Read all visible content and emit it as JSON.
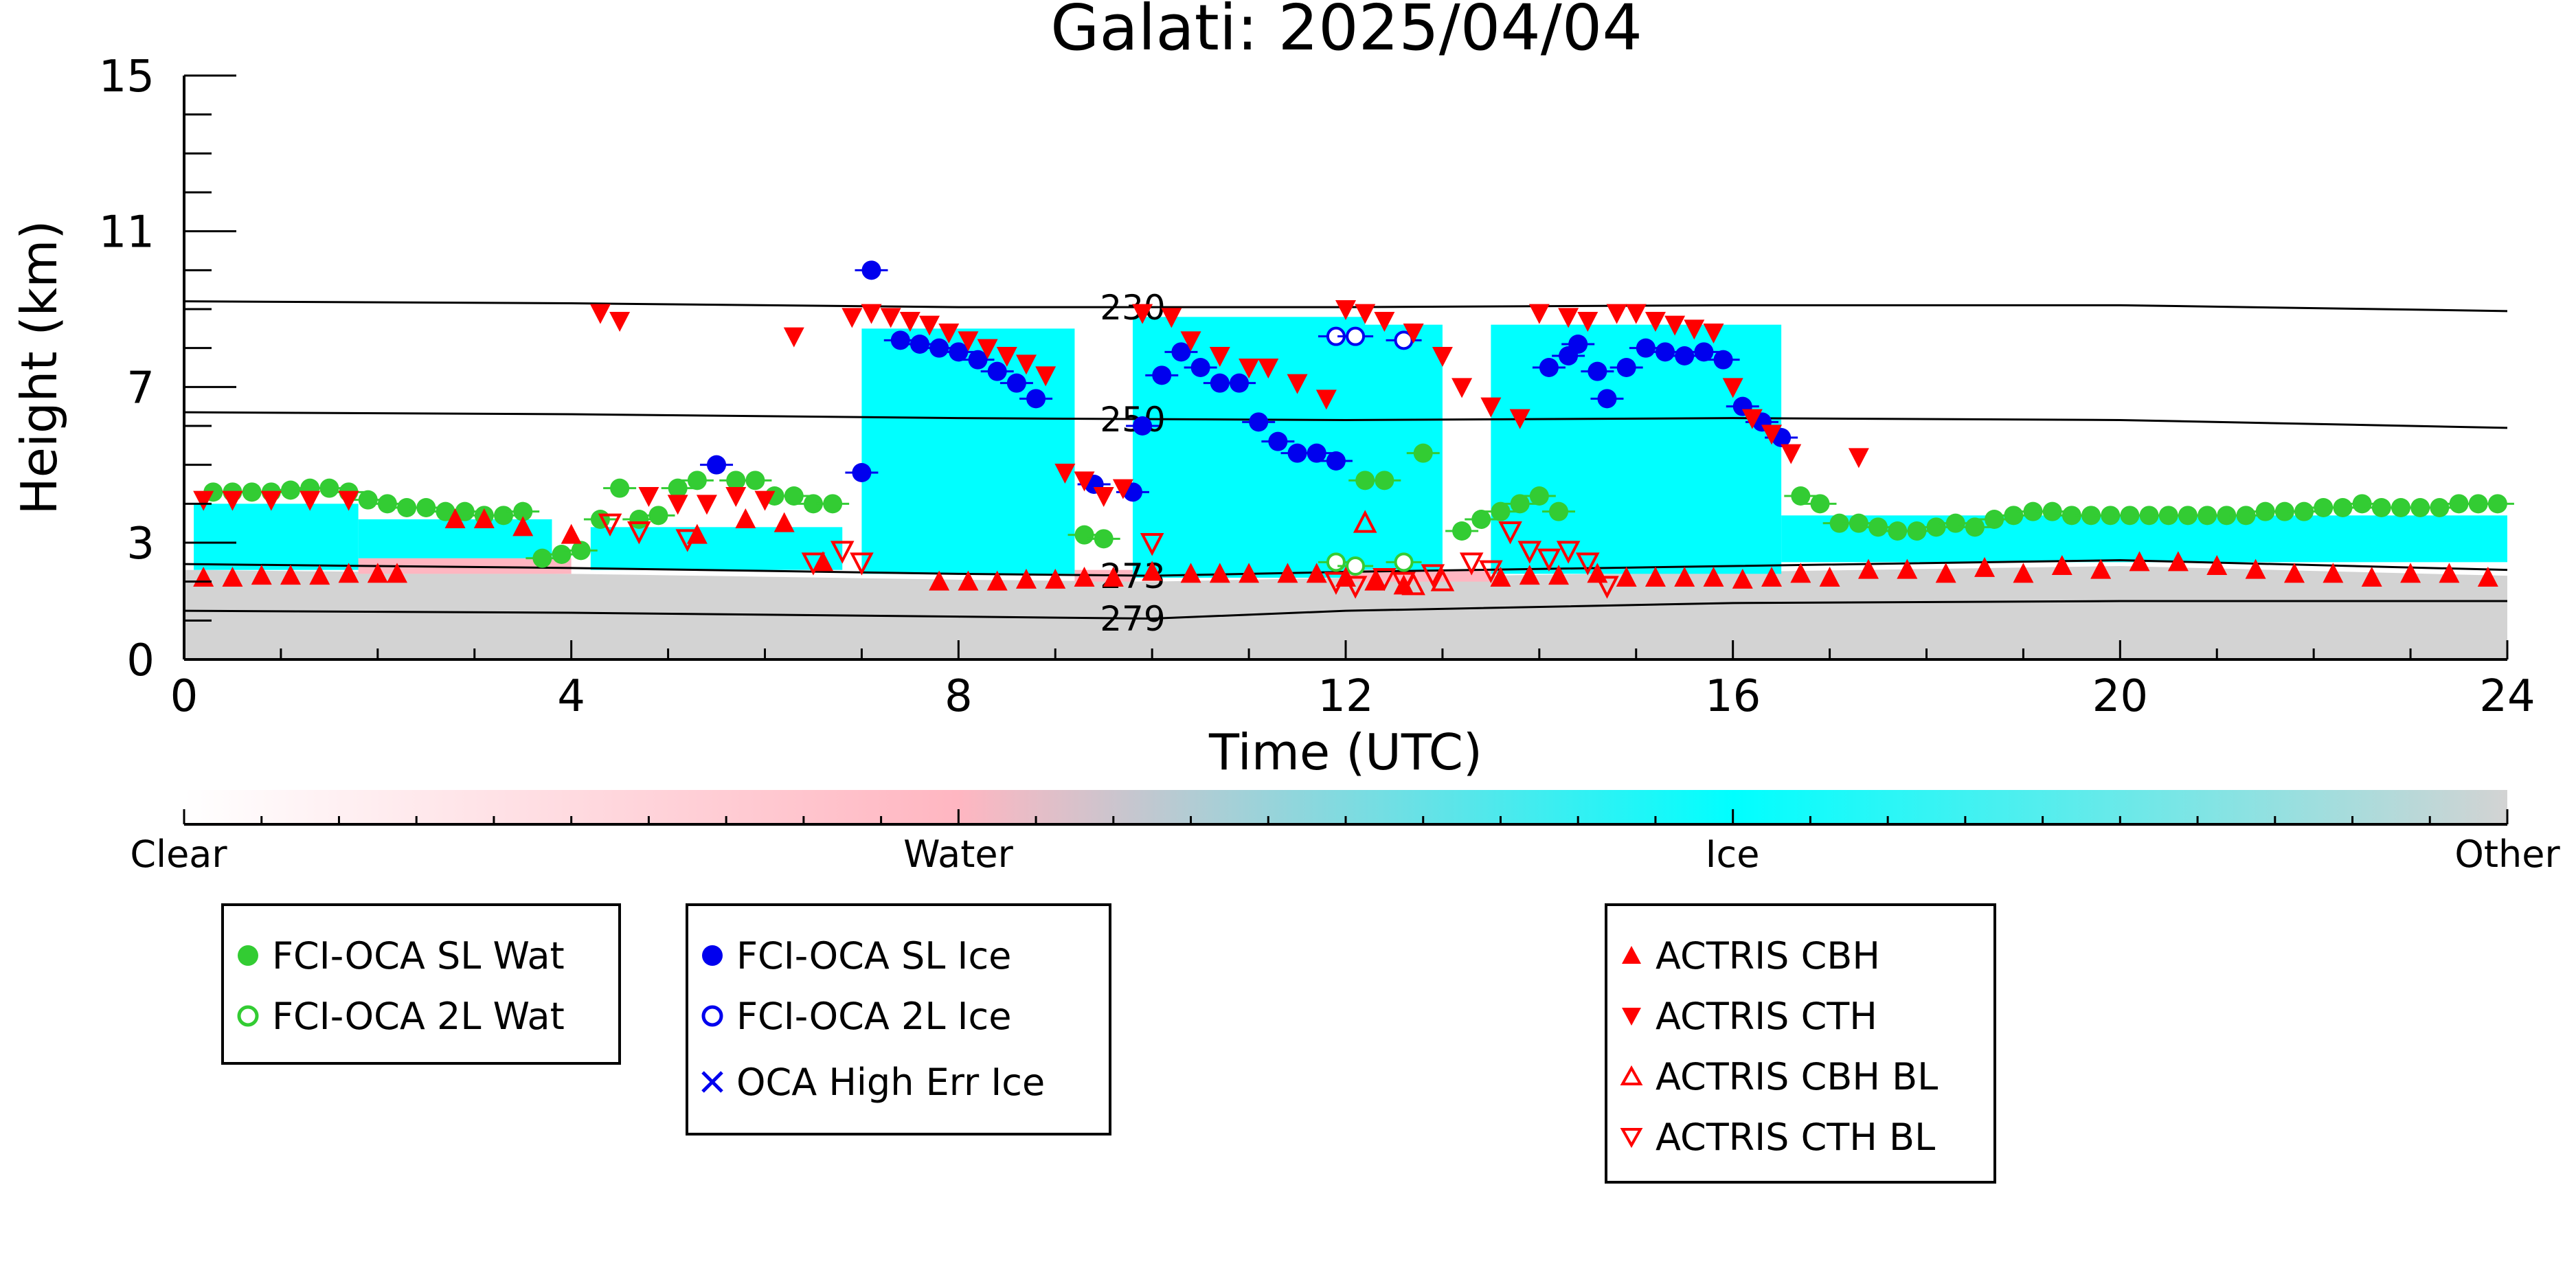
{
  "chart_data": {
    "type": "scatter",
    "title": "Galati: 2025/04/04",
    "xlabel": "Time (UTC)",
    "ylabel": "Height (km)",
    "xlim": [
      0,
      24
    ],
    "ylim": [
      0,
      15
    ],
    "xticks": [
      0,
      4,
      8,
      12,
      16,
      20,
      24
    ],
    "yticks": [
      0,
      3,
      7,
      11,
      15
    ],
    "grid": false,
    "background_classes": {
      "colorbar_labels": [
        "Clear",
        "Water",
        "Ice",
        "Other"
      ],
      "colors": {
        "clear": "#ffffff",
        "water": "#ffb6c1",
        "ice": "#00ffff",
        "other": "#d3d3d3"
      }
    },
    "isotherms": [
      {
        "label": "230",
        "x": [
          0,
          4,
          8,
          12,
          16,
          20,
          24
        ],
        "y": [
          9.2,
          9.15,
          9.05,
          9.05,
          9.1,
          9.1,
          8.95
        ]
      },
      {
        "label": "250",
        "x": [
          0,
          4,
          8,
          12,
          16,
          20,
          24
        ],
        "y": [
          6.35,
          6.3,
          6.2,
          6.15,
          6.2,
          6.15,
          5.95
        ]
      },
      {
        "label": "273",
        "x": [
          0,
          4,
          8,
          10,
          12,
          16,
          20,
          24
        ],
        "y": [
          2.45,
          2.35,
          2.2,
          2.15,
          2.25,
          2.4,
          2.55,
          2.3
        ]
      },
      {
        "label": "279",
        "x": [
          0,
          4,
          8,
          10,
          12,
          16,
          20,
          24
        ],
        "y": [
          1.25,
          1.2,
          1.1,
          1.05,
          1.25,
          1.45,
          1.5,
          1.5
        ]
      }
    ],
    "series": [
      {
        "name": "FCI-OCA SL Wat",
        "color": "#33cc33",
        "marker": "filled-circle",
        "x": [
          0.3,
          0.5,
          0.7,
          0.9,
          1.1,
          1.3,
          1.5,
          1.7,
          1.9,
          2.1,
          2.3,
          2.5,
          2.7,
          2.9,
          3.1,
          3.3,
          3.5,
          3.7,
          3.9,
          4.1,
          4.3,
          4.5,
          4.7,
          4.9,
          5.1,
          5.3,
          5.7,
          5.9,
          6.1,
          6.3,
          6.5,
          6.7,
          9.3,
          9.5,
          12.2,
          12.4,
          12.8,
          13.2,
          13.4,
          13.6,
          13.8,
          14.0,
          14.2,
          16.7,
          16.9,
          17.1,
          17.3,
          17.5,
          17.7,
          17.9,
          18.1,
          18.3,
          18.5,
          18.7,
          18.9,
          19.1,
          19.3,
          19.5,
          19.7,
          19.9,
          20.1,
          20.3,
          20.5,
          20.7,
          20.9,
          21.1,
          21.3,
          21.5,
          21.7,
          21.9,
          22.1,
          22.3,
          22.5,
          22.7,
          22.9,
          23.1,
          23.3,
          23.5,
          23.7,
          23.9
        ],
        "y": [
          4.3,
          4.3,
          4.3,
          4.3,
          4.35,
          4.4,
          4.4,
          4.3,
          4.1,
          4.0,
          3.9,
          3.9,
          3.8,
          3.8,
          3.7,
          3.7,
          3.8,
          2.6,
          2.7,
          2.8,
          3.6,
          4.4,
          3.6,
          3.7,
          4.4,
          4.6,
          4.6,
          4.6,
          4.2,
          4.2,
          4.0,
          4.0,
          3.2,
          3.1,
          4.6,
          4.6,
          5.3,
          3.3,
          3.6,
          3.8,
          4.0,
          4.2,
          3.8,
          4.2,
          4.0,
          3.5,
          3.5,
          3.4,
          3.3,
          3.3,
          3.4,
          3.5,
          3.4,
          3.6,
          3.7,
          3.8,
          3.8,
          3.7,
          3.7,
          3.7,
          3.7,
          3.7,
          3.7,
          3.7,
          3.7,
          3.7,
          3.7,
          3.8,
          3.8,
          3.8,
          3.9,
          3.9,
          4.0,
          3.9,
          3.9,
          3.9,
          3.9,
          4.0,
          4.0,
          4.0
        ]
      },
      {
        "name": "FCI-OCA 2L Wat",
        "color": "#33cc33",
        "marker": "open-circle",
        "x": [
          11.9,
          12.1,
          12.6
        ],
        "y": [
          2.5,
          2.4,
          2.5
        ]
      },
      {
        "name": "FCI-OCA SL Ice",
        "color": "#0000ee",
        "marker": "filled-circle",
        "x": [
          5.5,
          7.0,
          7.1,
          7.4,
          7.6,
          7.8,
          8.0,
          8.2,
          8.4,
          8.6,
          8.8,
          9.4,
          9.8,
          9.9,
          10.1,
          10.3,
          10.5,
          10.7,
          10.9,
          11.1,
          11.3,
          11.5,
          11.7,
          11.9,
          14.1,
          14.3,
          14.4,
          14.6,
          14.7,
          14.9,
          15.1,
          15.3,
          15.5,
          15.7,
          15.9,
          16.1,
          16.3,
          16.5
        ],
        "y": [
          5.0,
          4.8,
          10.0,
          8.2,
          8.1,
          8.0,
          7.9,
          7.7,
          7.4,
          7.1,
          6.7,
          4.5,
          4.3,
          6.0,
          7.3,
          7.9,
          7.5,
          7.1,
          7.1,
          6.1,
          5.6,
          5.3,
          5.3,
          5.1,
          7.5,
          7.8,
          8.1,
          7.4,
          6.7,
          7.5,
          8.0,
          7.9,
          7.8,
          7.9,
          7.7,
          6.5,
          6.1,
          5.7
        ]
      },
      {
        "name": "FCI-OCA 2L Ice",
        "color": "#0000ee",
        "marker": "open-circle",
        "x": [
          11.9,
          12.1,
          12.6
        ],
        "y": [
          8.3,
          8.3,
          8.2
        ]
      },
      {
        "name": "OCA High Err Ice",
        "color": "#0000ee",
        "marker": "x",
        "x": [],
        "y": []
      },
      {
        "name": "ACTRIS CBH",
        "color": "#ff0000",
        "marker": "filled-triangle-up",
        "x": [
          0.2,
          0.5,
          0.8,
          1.1,
          1.4,
          1.7,
          2.0,
          2.2,
          6.6,
          7.8,
          8.1,
          8.4,
          8.7,
          9.0,
          9.3,
          9.6,
          10.0,
          10.4,
          10.7,
          11.0,
          11.4,
          11.7,
          12.0,
          12.3,
          12.6,
          13.6,
          13.9,
          14.2,
          14.6,
          14.9,
          15.2,
          15.5,
          15.8,
          16.1,
          16.4,
          16.7,
          17.0,
          17.4,
          17.8,
          18.2,
          18.6,
          19.0,
          19.4,
          19.8,
          20.2,
          20.6,
          21.0,
          21.4,
          21.8,
          22.2,
          22.6,
          23.0,
          23.4,
          23.8,
          2.8,
          3.1,
          3.5,
          4.0,
          5.3,
          5.8,
          6.2
        ],
        "y": [
          2.1,
          2.1,
          2.15,
          2.15,
          2.15,
          2.2,
          2.2,
          2.2,
          2.5,
          2.0,
          2.0,
          2.0,
          2.05,
          2.05,
          2.1,
          2.1,
          2.25,
          2.2,
          2.2,
          2.2,
          2.2,
          2.2,
          2.1,
          2.0,
          1.9,
          2.1,
          2.15,
          2.15,
          2.2,
          2.1,
          2.1,
          2.1,
          2.1,
          2.05,
          2.1,
          2.2,
          2.1,
          2.3,
          2.3,
          2.2,
          2.35,
          2.2,
          2.4,
          2.3,
          2.5,
          2.5,
          2.4,
          2.3,
          2.2,
          2.2,
          2.1,
          2.2,
          2.2,
          2.1,
          3.6,
          3.6,
          3.4,
          3.2,
          3.2,
          3.6,
          3.5
        ]
      },
      {
        "name": "ACTRIS CTH",
        "color": "#ff0000",
        "marker": "filled-triangle-down",
        "x": [
          4.3,
          4.5,
          6.3,
          6.9,
          7.1,
          7.3,
          7.5,
          7.7,
          7.9,
          8.1,
          8.3,
          8.5,
          8.7,
          8.9,
          9.1,
          9.3,
          9.5,
          9.7,
          9.9,
          10.2,
          10.4,
          10.7,
          11.0,
          11.2,
          11.5,
          11.8,
          12.0,
          12.2,
          12.4,
          12.7,
          13.0,
          13.2,
          13.5,
          13.8,
          14.0,
          14.3,
          14.5,
          14.8,
          15.0,
          15.2,
          15.4,
          15.6,
          15.8,
          16.0,
          16.2,
          16.4,
          16.6,
          17.3,
          0.2,
          0.5,
          0.9,
          1.3,
          1.7,
          4.8,
          5.1,
          5.4,
          5.7,
          6.0
        ],
        "y": [
          8.9,
          8.7,
          8.3,
          8.8,
          8.9,
          8.8,
          8.7,
          8.6,
          8.4,
          8.2,
          8.0,
          7.8,
          7.6,
          7.3,
          4.8,
          4.6,
          4.2,
          4.4,
          8.9,
          8.8,
          8.2,
          7.8,
          7.5,
          7.5,
          7.1,
          6.7,
          9.0,
          8.9,
          8.7,
          8.4,
          7.8,
          7.0,
          6.5,
          6.2,
          8.9,
          8.8,
          8.7,
          8.9,
          8.9,
          8.7,
          8.6,
          8.5,
          8.4,
          7.0,
          6.2,
          5.8,
          5.3,
          5.2,
          4.1,
          4.1,
          4.1,
          4.1,
          4.1,
          4.2,
          4.0,
          4.0,
          4.2,
          4.1
        ]
      },
      {
        "name": "ACTRIS CBH BL",
        "color": "#ff0000",
        "marker": "open-triangle-up",
        "x": [
          12.2,
          12.7,
          13.0
        ],
        "y": [
          3.5,
          1.9,
          2.0
        ]
      },
      {
        "name": "ACTRIS CTH BL",
        "color": "#ff0000",
        "marker": "open-triangle-down",
        "x": [
          4.4,
          4.7,
          5.2,
          6.8,
          7.0,
          10.0,
          11.9,
          12.1,
          12.4,
          12.6,
          12.9,
          13.3,
          13.5,
          13.7,
          13.9,
          14.1,
          14.3,
          14.5,
          14.7,
          6.5
        ],
        "y": [
          3.5,
          3.3,
          3.1,
          2.8,
          2.5,
          3.0,
          2.0,
          1.9,
          2.1,
          2.0,
          2.2,
          2.5,
          2.3,
          3.3,
          2.8,
          2.6,
          2.8,
          2.5,
          1.9,
          2.5
        ]
      }
    ]
  },
  "legend": {
    "box1": {
      "items": [
        {
          "label": "FCI-OCA SL Wat"
        },
        {
          "label": "FCI-OCA 2L Wat"
        }
      ]
    },
    "box2": {
      "items": [
        {
          "label": "FCI-OCA SL Ice"
        },
        {
          "label": "FCI-OCA 2L Ice"
        },
        {
          "label": "OCA High Err Ice"
        }
      ]
    },
    "box3": {
      "items": [
        {
          "label": "ACTRIS CBH"
        },
        {
          "label": "ACTRIS CTH"
        },
        {
          "label": "ACTRIS CBH BL"
        },
        {
          "label": "ACTRIS CTH BL"
        }
      ]
    }
  }
}
